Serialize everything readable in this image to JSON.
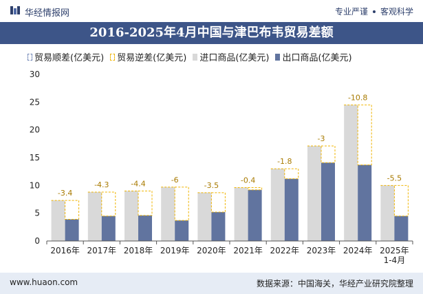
{
  "header": {
    "brand": "华经情报网",
    "slogan_left": "专业严谨",
    "slogan_right": "客观科学",
    "logo_icon": "huajing-logo-icon"
  },
  "title": "2016-2025年4月中国与津巴布韦贸易差额",
  "footer": {
    "website": "www.huaon.com",
    "source": "数据来源：中国海关，华经产业研究院整理"
  },
  "colors": {
    "title_bg": "#3d5588",
    "import": "#d9d9d9",
    "export": "#61749f",
    "deficit": "#f0b400",
    "surplus": "#6d83b5",
    "footer_bg": "#e6ecf5"
  },
  "chart_data": {
    "type": "bar",
    "categories": [
      "2016年",
      "2017年",
      "2018年",
      "2019年",
      "2020年",
      "2021年",
      "2022年",
      "2023年",
      "2024年",
      "2025年\n1-4月"
    ],
    "series": [
      {
        "name": "进口商品(亿美元)",
        "values": [
          7.3,
          8.8,
          9.0,
          9.7,
          8.7,
          9.6,
          13.0,
          17.1,
          24.5,
          10.0
        ]
      },
      {
        "name": "出口商品(亿美元)",
        "values": [
          3.9,
          4.5,
          4.6,
          3.7,
          5.2,
          9.2,
          11.2,
          14.1,
          13.7,
          4.5
        ]
      }
    ],
    "balance": {
      "surplus_name": "贸易顺差(亿美元)",
      "deficit_name": "贸易逆差(亿美元)",
      "values": [
        -3.4,
        -4.3,
        -4.4,
        -6,
        -3.5,
        -0.4,
        -1.8,
        -3,
        -10.8,
        -5.5
      ]
    },
    "ylim": [
      0,
      30
    ],
    "yticks": [
      0,
      5,
      10,
      15,
      20,
      25,
      30
    ],
    "legend_position": "top-left",
    "grid": false
  }
}
